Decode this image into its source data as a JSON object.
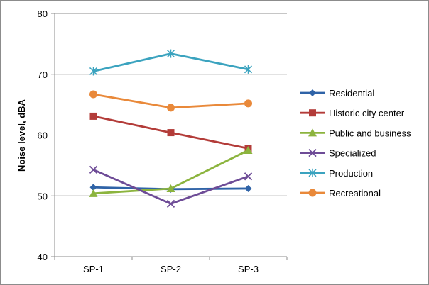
{
  "chart_data": {
    "type": "line",
    "title": "",
    "xlabel": "",
    "ylabel": "Noise level, dBA",
    "ylim": [
      40,
      80
    ],
    "yticks": [
      40,
      50,
      60,
      70,
      80
    ],
    "grid": "horizontal",
    "legend_position": "right",
    "categories": [
      "SP-1",
      "SP-2",
      "SP-3"
    ],
    "series": [
      {
        "name": "Residential",
        "values": [
          51.4,
          51.1,
          51.2
        ],
        "color": "#2F63A7",
        "marker": "diamond"
      },
      {
        "name": "Historic city center",
        "values": [
          63.1,
          60.4,
          57.8
        ],
        "color": "#B33C39",
        "marker": "square"
      },
      {
        "name": "Public and business",
        "values": [
          50.4,
          51.2,
          57.5
        ],
        "color": "#8CB43E",
        "marker": "triangle"
      },
      {
        "name": "Specialized",
        "values": [
          54.3,
          48.7,
          53.2
        ],
        "color": "#6E4C97",
        "marker": "x"
      },
      {
        "name": "Production",
        "values": [
          70.5,
          73.4,
          70.8
        ],
        "color": "#3BA3BF",
        "marker": "star"
      },
      {
        "name": "Recreational",
        "values": [
          66.7,
          64.5,
          65.2
        ],
        "color": "#E9893A",
        "marker": "circle"
      }
    ]
  }
}
